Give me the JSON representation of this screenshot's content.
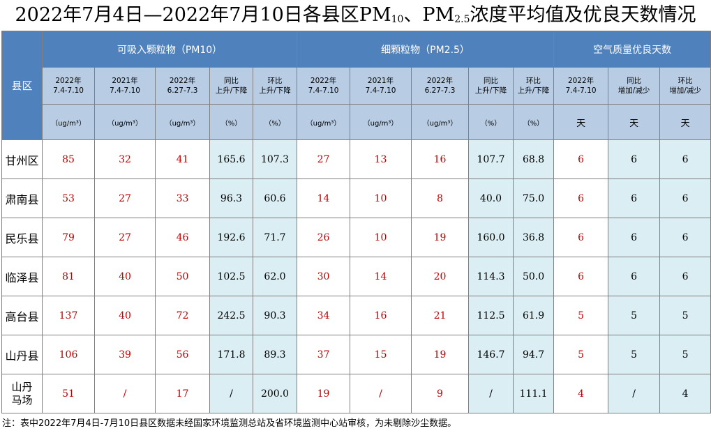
{
  "title": {
    "part1": "2022年7月4日—2022年7月10日各县区PM",
    "sub1": "10",
    "part2": "、PM",
    "sub2": "2.5",
    "part3": "浓度平均值及优良天数情况"
  },
  "header": {
    "county": "县区",
    "groups": [
      "可吸入颗粒物（PM10）",
      "细颗粒物（PM2.5）",
      "空气质量优良天数"
    ],
    "subheaders": [
      [
        "2022年",
        "7.4-7.10"
      ],
      [
        "2021年",
        "7.4-7.10"
      ],
      [
        "2022年",
        "6.27-7.3"
      ],
      [
        "同比",
        "上升/下降"
      ],
      [
        "环比",
        "上升/下降"
      ],
      [
        "2022年",
        "7.4-7.10"
      ],
      [
        "2021年",
        "7.4-7.10"
      ],
      [
        "2022年",
        "6.27-7.3"
      ],
      [
        "同比",
        "上升/下降"
      ],
      [
        "环比",
        "上升/下降"
      ],
      [
        "2022年",
        "7.4-7.10"
      ],
      [
        "同比",
        "增加/减少"
      ],
      [
        "环比",
        "增加/减少"
      ]
    ],
    "units": [
      "（ug/m³）",
      "（ug/m³）",
      "（ug/m³）",
      "（%）",
      "（%）",
      "（ug/m³）",
      "（ug/m³）",
      "（ug/m³）",
      "（%）",
      "（%）",
      "天",
      "天",
      "天"
    ]
  },
  "rows": [
    {
      "name": [
        "甘州区"
      ],
      "values": [
        "85",
        "32",
        "41",
        "165.6",
        "107.3",
        "27",
        "13",
        "16",
        "107.7",
        "68.8",
        "6",
        "6",
        "6"
      ]
    },
    {
      "name": [
        "肃南县"
      ],
      "values": [
        "53",
        "27",
        "33",
        "96.3",
        "60.6",
        "14",
        "10",
        "8",
        "40.0",
        "75.0",
        "6",
        "6",
        "6"
      ]
    },
    {
      "name": [
        "民乐县"
      ],
      "values": [
        "79",
        "27",
        "46",
        "192.6",
        "71.7",
        "26",
        "10",
        "19",
        "160.0",
        "36.8",
        "6",
        "6",
        "6"
      ]
    },
    {
      "name": [
        "临泽县"
      ],
      "values": [
        "81",
        "40",
        "50",
        "102.5",
        "62.0",
        "30",
        "14",
        "20",
        "114.3",
        "50.0",
        "6",
        "6",
        "6"
      ]
    },
    {
      "name": [
        "高台县"
      ],
      "values": [
        "137",
        "40",
        "72",
        "242.5",
        "90.3",
        "34",
        "16",
        "21",
        "112.5",
        "61.9",
        "5",
        "5",
        "5"
      ]
    },
    {
      "name": [
        "山丹县"
      ],
      "values": [
        "106",
        "39",
        "56",
        "171.8",
        "89.3",
        "37",
        "15",
        "19",
        "146.7",
        "94.7",
        "5",
        "5",
        "5"
      ]
    },
    {
      "name": [
        "山丹",
        "马场"
      ],
      "values": [
        "51",
        "/",
        "17",
        "/",
        "200.0",
        "19",
        "/",
        "9",
        "/",
        "111.1",
        "4",
        "/",
        "4"
      ]
    }
  ],
  "note": "注：表中2022年7月4日-7月10日县区数据未经国家环境监测总站及省环境监测中心站审核，为未剔除沙尘数据。",
  "colors": {
    "header_blue": "#4f81bd",
    "subheader_blue": "#b8cce4",
    "cell_light_blue": "#dbeef3",
    "value_red": "#c00000"
  }
}
